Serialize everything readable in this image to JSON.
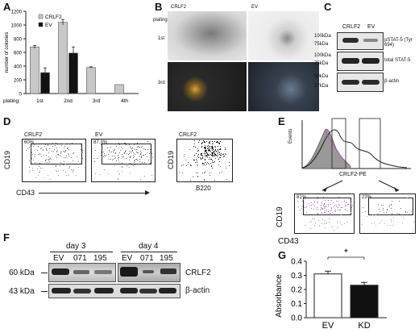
{
  "panels": {
    "A": {
      "letter": "A",
      "ylabel": "number of colonies",
      "legend": [
        "CRLF2",
        "EV"
      ],
      "plating_label": "plating:",
      "categories": [
        "1st",
        "2nd",
        "3rd",
        "4th"
      ],
      "yticks": [
        "0",
        "200",
        "400",
        "600",
        "800",
        "1000",
        "1200"
      ],
      "colors": {
        "crlf2": "#c8c8c8",
        "ev": "#111111"
      }
    },
    "B": {
      "letter": "B",
      "col_labels": [
        "CRLF2",
        "EV"
      ],
      "plating_label": "plating:",
      "row_labels": [
        "1st",
        "3rd"
      ]
    },
    "C": {
      "letter": "C",
      "lanes": [
        "CRLF2",
        "EV"
      ],
      "markers": [
        "100kDa",
        "75kDa",
        "100kDa",
        "75kDa",
        "50kDa",
        "37kDa"
      ],
      "bands": [
        "pSTAT-5 (Tyr 694)",
        "total STAT-5",
        "β-actin"
      ]
    },
    "D": {
      "letter": "D",
      "plots": [
        {
          "title": "CRLF2",
          "pct": "60%"
        },
        {
          "title": "EV",
          "pct": "87.3%"
        },
        {
          "title": "CRLF2",
          "pct": ""
        }
      ],
      "ylabel": "CD19",
      "xlabel": "CD43",
      "xlabel3": "B220"
    },
    "E": {
      "letter": "E",
      "hist_ylabel": "Events",
      "hist_xlabel": "CRLF2-PE",
      "pct_left": "81%",
      "pct_right": "23%",
      "ylabel": "CD19",
      "xlabel": "CD43"
    },
    "F": {
      "letter": "F",
      "day3": "day 3",
      "day4": "day 4",
      "lanes": [
        "EV",
        "071",
        "195",
        "EV",
        "071",
        "195"
      ],
      "kda": [
        "60 kDa",
        "43 kDa"
      ],
      "bands": [
        "CRLF2",
        "β-actin"
      ]
    },
    "G": {
      "letter": "G",
      "ylabel": "Absorbance",
      "sig": "*",
      "yticks": [
        "0.0",
        "0.1",
        "0.2",
        "0.3",
        "0.4"
      ]
    }
  },
  "chart_data": [
    {
      "type": "bar",
      "panel": "A",
      "categories": [
        "1st",
        "2nd",
        "3rd",
        "4th"
      ],
      "ylim": [
        0,
        1200
      ],
      "series": [
        {
          "name": "CRLF2",
          "values": [
            680,
            1040,
            380,
            130
          ],
          "errors": [
            20,
            40,
            10,
            0
          ]
        },
        {
          "name": "EV",
          "values": [
            305,
            590,
            0,
            0
          ],
          "errors": [
            70,
            90,
            0,
            0
          ]
        }
      ],
      "ylabel": "number of colonies"
    },
    {
      "type": "bar",
      "panel": "G",
      "categories": [
        "EV",
        "KD"
      ],
      "values": [
        0.31,
        0.23
      ],
      "errors": [
        0.02,
        0.02
      ],
      "ylim": [
        0,
        0.4
      ],
      "ylabel": "Absorbance"
    }
  ]
}
